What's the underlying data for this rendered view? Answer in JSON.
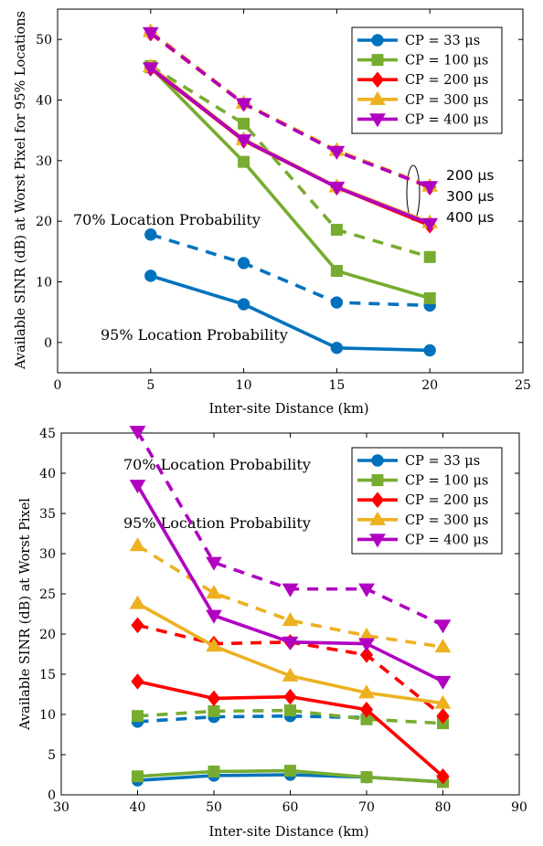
{
  "colors": {
    "cp33": "#0072BD",
    "cp100": "#77AC30",
    "cp200": "#FF0000",
    "cp300": "#EDB120",
    "cp400": "#B000C0",
    "axis": "#000000",
    "background": "#ffffff"
  },
  "chart_data": [
    {
      "type": "line",
      "title": "",
      "xlabel": "Inter-site Distance (km)",
      "ylabel": "Available SINR (dB) at Worst Pixel for 95% Locations",
      "xlim": [
        0,
        25
      ],
      "ylim": [
        -5,
        55
      ],
      "xticks": [
        0,
        5,
        10,
        15,
        20,
        25
      ],
      "yticks": [
        0,
        10,
        20,
        30,
        40,
        50
      ],
      "grid": false,
      "legend_position": "top-right",
      "x": [
        5,
        10,
        15,
        20
      ],
      "line_styles": {
        "solid": "95% Location Probability",
        "dashed": "70% Location Probability"
      },
      "series": [
        {
          "name": "CP = 33 μs",
          "color_key": "cp33",
          "marker": "circle",
          "solid": [
            11.0,
            6.3,
            -0.9,
            -1.3
          ],
          "dashed": [
            17.8,
            13.1,
            6.6,
            6.1
          ]
        },
        {
          "name": "CP = 100 μs",
          "color_key": "cp100",
          "marker": "square",
          "solid": [
            45.4,
            29.8,
            11.8,
            7.3
          ],
          "dashed": [
            45.6,
            36.1,
            18.6,
            14.1
          ]
        },
        {
          "name": "CP = 200 μs",
          "color_key": "cp200",
          "marker": "diamond",
          "solid": [
            45.2,
            33.3,
            25.6,
            19.3
          ],
          "dashed": [
            51.0,
            39.4,
            31.6,
            25.6
          ]
        },
        {
          "name": "CP = 300 μs",
          "color_key": "cp300",
          "marker": "triangle-up",
          "solid": [
            45.5,
            33.5,
            25.7,
            19.8
          ],
          "dashed": [
            51.3,
            39.5,
            31.7,
            25.8
          ]
        },
        {
          "name": "CP = 400 μs",
          "color_key": "cp400",
          "marker": "triangle-down",
          "solid": [
            45.3,
            33.4,
            25.6,
            19.6
          ],
          "dashed": [
            51.1,
            39.4,
            31.5,
            25.7
          ]
        }
      ],
      "annotations": {
        "seventy": "70% Location Probability",
        "ninetyfive": "95% Location Probability",
        "side_labels": [
          "200 μs",
          "300 μs",
          "400 μs"
        ]
      }
    },
    {
      "type": "line",
      "title": "",
      "xlabel": "Inter-site Distance (km)",
      "ylabel": "Available SINR (dB) at Worst Pixel",
      "xlim": [
        30,
        90
      ],
      "ylim": [
        0,
        45
      ],
      "xticks": [
        30,
        40,
        50,
        60,
        70,
        80,
        90
      ],
      "yticks": [
        0,
        5,
        10,
        15,
        20,
        25,
        30,
        35,
        40,
        45
      ],
      "grid": false,
      "legend_position": "top-right",
      "x": [
        40,
        50,
        60,
        70,
        80
      ],
      "line_styles": {
        "solid": "95% Location Probability",
        "dashed": "70% Location Probability"
      },
      "series": [
        {
          "name": "CP = 33 μs",
          "color_key": "cp33",
          "marker": "circle",
          "solid": [
            1.8,
            2.4,
            2.5,
            2.2,
            1.6
          ],
          "dashed": [
            9.1,
            9.7,
            9.8,
            9.6,
            null
          ]
        },
        {
          "name": "CP = 100 μs",
          "color_key": "cp100",
          "marker": "square",
          "solid": [
            2.3,
            2.9,
            3.0,
            2.2,
            1.6
          ],
          "dashed": [
            9.8,
            10.4,
            10.5,
            9.4,
            8.9
          ]
        },
        {
          "name": "CP = 200 μs",
          "color_key": "cp200",
          "marker": "diamond",
          "solid": [
            14.1,
            12.0,
            12.2,
            10.6,
            2.3
          ],
          "dashed": [
            21.1,
            18.8,
            19.0,
            17.4,
            9.8
          ]
        },
        {
          "name": "CP = 300 μs",
          "color_key": "cp300",
          "marker": "triangle-up",
          "solid": [
            23.8,
            18.5,
            14.8,
            12.7,
            11.4
          ],
          "dashed": [
            31.0,
            25.1,
            21.7,
            19.8,
            18.4
          ]
        },
        {
          "name": "CP = 400 μs",
          "color_key": "cp400",
          "marker": "triangle-down",
          "solid": [
            38.5,
            22.3,
            19.0,
            18.8,
            14.1
          ],
          "dashed": [
            45.2,
            28.9,
            25.6,
            25.6,
            21.1
          ]
        }
      ],
      "annotations": {
        "seventy": "70% Location Probability",
        "ninetyfive": "95% Location Probability"
      }
    }
  ]
}
